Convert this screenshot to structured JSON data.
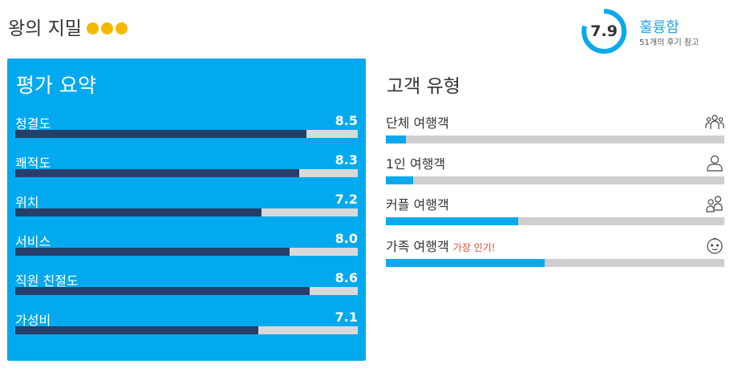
{
  "hotel": {
    "name": "왕의 지밀",
    "stars": 3,
    "star_color": "#f5b800"
  },
  "score": {
    "value": "7.9",
    "word": "훌륭함",
    "subtitle": "51개의 후기 참고",
    "fraction": 0.79,
    "color": "#2aa3de"
  },
  "summary": {
    "title": "평가 요약",
    "bar_color": "#253f6a",
    "items": [
      {
        "label": "청결도",
        "value": "8.5"
      },
      {
        "label": "쾌적도",
        "value": "8.3"
      },
      {
        "label": "위치",
        "value": "7.2"
      },
      {
        "label": "서비스",
        "value": "8.0"
      },
      {
        "label": "직원 친절도",
        "value": "8.6"
      },
      {
        "label": "가성비",
        "value": "7.1"
      }
    ]
  },
  "traveler_types": {
    "title": "고객 유형",
    "bar_color": "#0aa8ee",
    "items": [
      {
        "label": "단체 여행객",
        "badge": "",
        "icon": "group-icon",
        "share": 0.06
      },
      {
        "label": "1인 여행객",
        "badge": "",
        "icon": "solo-person-icon",
        "share": 0.08
      },
      {
        "label": "커플 여행객",
        "badge": "",
        "icon": "couple-icon",
        "share": 0.39
      },
      {
        "label": "가족 여행객",
        "badge": "가장 인기!",
        "icon": "baby-face-icon",
        "share": 0.47
      }
    ]
  }
}
